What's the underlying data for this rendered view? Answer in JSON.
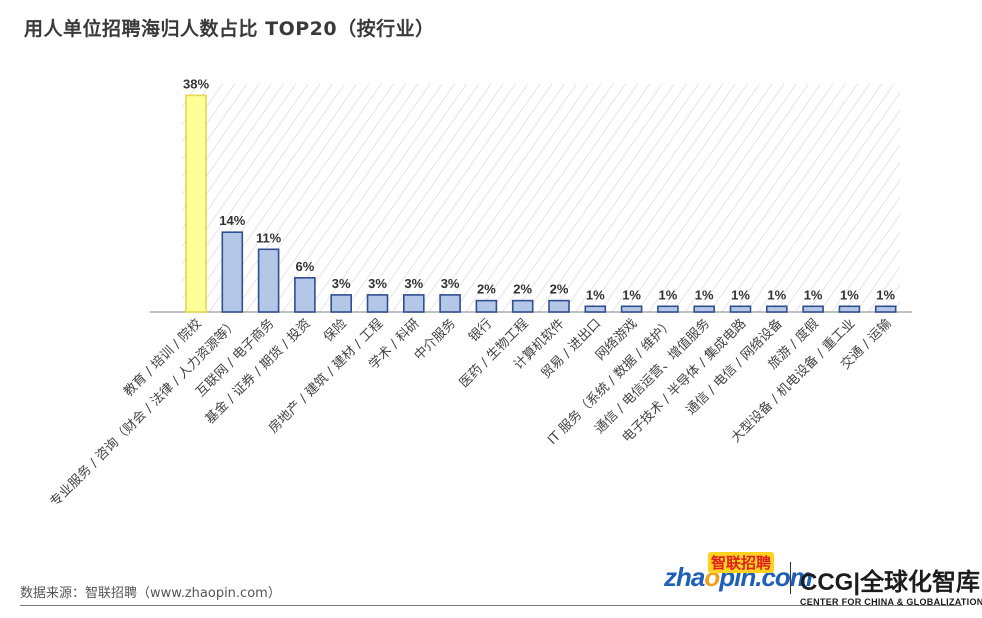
{
  "page": {
    "title": "用人单位招聘海归人数占比 TOP20（按行业）",
    "source": "数据来源：智联招聘（www.zhaopin.com）"
  },
  "logos": {
    "zhaopin_prefix": "zha",
    "zhaopin_suffix": "pin.com",
    "zhaopin_cn": "智联招聘",
    "ccg_name": "CCG",
    "ccg_cn": "全球化智库",
    "ccg_sub": "CENTER FOR CHINA & GLOBALIZATION"
  },
  "colors": {
    "highlight_fill": "#ffff99",
    "highlight_stroke": "#e8d84a",
    "bar_fill": "#b4c7e7",
    "bar_stroke": "#2f4f8f",
    "hatch": "#d6d6d6"
  },
  "chart_data": {
    "type": "bar",
    "title": "用人单位招聘海归人数占比 TOP20（按行业）",
    "xlabel": "",
    "ylabel": "",
    "ylim": [
      0,
      40
    ],
    "grid": false,
    "categories": [
      "教育 / 培训 / 院校",
      "专业服务 / 咨询（财会 / 法律 / 人力资源等）",
      "互联网 / 电子商务",
      "基金 / 证券 / 期货 / 投资",
      "保险",
      "房地产 / 建筑 / 建材 / 工程",
      "学术 / 科研",
      "中介服务",
      "银行",
      "医药 / 生物工程",
      "计算机软件",
      "贸易 / 进出口",
      "网络游戏",
      "IT 服务（系统 / 数据 / 维护）",
      "通信 / 电信运营、增值服务",
      "电子技术 / 半导体 / 集成电路",
      "通信 / 电信 / 网络设备",
      "旅游 / 度假",
      "大型设备 / 机电设备 / 重工业",
      "交通 / 运输"
    ],
    "values": [
      38,
      14,
      11,
      6,
      3,
      3,
      3,
      3,
      2,
      2,
      2,
      1,
      1,
      1,
      1,
      1,
      1,
      1,
      1,
      1
    ],
    "labels": [
      "38%",
      "14%",
      "11%",
      "6%",
      "3%",
      "3%",
      "3%",
      "3%",
      "2%",
      "2%",
      "2%",
      "1%",
      "1%",
      "1%",
      "1%",
      "1%",
      "1%",
      "1%",
      "1%",
      "1%"
    ],
    "highlight_index": 0
  }
}
